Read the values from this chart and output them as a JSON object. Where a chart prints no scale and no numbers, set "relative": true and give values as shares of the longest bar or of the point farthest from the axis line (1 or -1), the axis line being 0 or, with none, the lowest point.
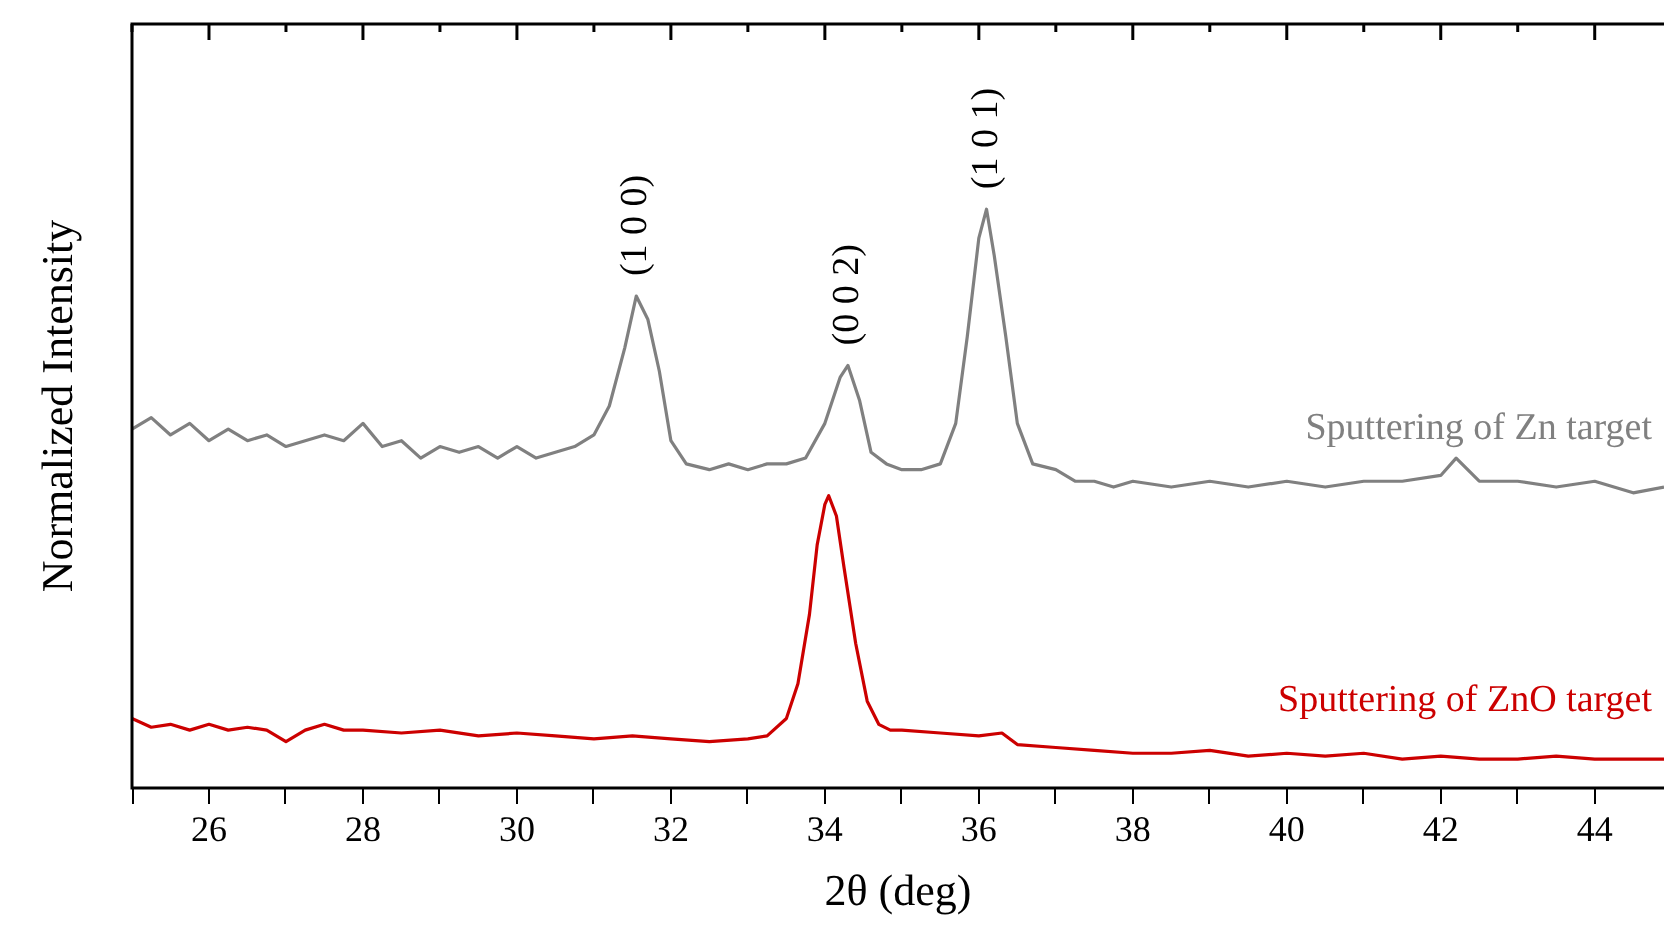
{
  "chart_data": {
    "type": "line",
    "relative": true,
    "xlabel": "2θ (deg)",
    "ylabel": "Normalized Intensity",
    "xlim": [
      25,
      44.9
    ],
    "xticks": [
      {
        "value": 25,
        "label": null
      },
      26,
      {
        "value": 27,
        "label": null
      },
      28,
      {
        "value": 29,
        "label": null
      },
      30,
      {
        "value": 31,
        "label": null
      },
      32,
      {
        "value": 33,
        "label": null
      },
      34,
      {
        "value": 35,
        "label": null
      },
      36,
      {
        "value": 37,
        "label": null
      },
      38,
      {
        "value": 39,
        "label": null
      },
      40,
      {
        "value": 41,
        "label": null
      },
      42,
      {
        "value": 43,
        "label": null
      },
      44
    ],
    "grid": false,
    "series": [
      {
        "name": "Sputtering of Zn target",
        "color": "#808080",
        "x": [
          25,
          25.25,
          25.5,
          25.75,
          26,
          26.25,
          26.5,
          26.75,
          27,
          27.25,
          27.5,
          27.75,
          28,
          28.25,
          28.5,
          28.75,
          29,
          29.25,
          29.5,
          29.75,
          30,
          30.25,
          30.5,
          30.75,
          31,
          31.2,
          31.4,
          31.55,
          31.7,
          31.85,
          32,
          32.2,
          32.5,
          32.75,
          33,
          33.25,
          33.5,
          33.75,
          34,
          34.2,
          34.3,
          34.45,
          34.6,
          34.8,
          35,
          35.25,
          35.5,
          35.7,
          35.85,
          36,
          36.1,
          36.2,
          36.35,
          36.5,
          36.7,
          37,
          37.25,
          37.5,
          37.75,
          38,
          38.5,
          39,
          39.5,
          40,
          40.5,
          41,
          41.5,
          42,
          42.2,
          42.5,
          43,
          43.5,
          44,
          44.5,
          44.9
        ],
        "values": [
          0.62,
          0.64,
          0.61,
          0.63,
          0.6,
          0.62,
          0.6,
          0.61,
          0.59,
          0.6,
          0.61,
          0.6,
          0.63,
          0.59,
          0.6,
          0.57,
          0.59,
          0.58,
          0.59,
          0.57,
          0.59,
          0.57,
          0.58,
          0.59,
          0.61,
          0.66,
          0.76,
          0.85,
          0.81,
          0.72,
          0.6,
          0.56,
          0.55,
          0.56,
          0.55,
          0.56,
          0.56,
          0.57,
          0.63,
          0.71,
          0.73,
          0.67,
          0.58,
          0.56,
          0.55,
          0.55,
          0.56,
          0.63,
          0.78,
          0.95,
          1,
          0.92,
          0.78,
          0.63,
          0.56,
          0.55,
          0.53,
          0.53,
          0.52,
          0.53,
          0.52,
          0.53,
          0.52,
          0.53,
          0.52,
          0.53,
          0.53,
          0.54,
          0.57,
          0.53,
          0.53,
          0.52,
          0.53,
          0.51,
          0.52
        ]
      },
      {
        "name": "Sputtering of ZnO target",
        "color": "#cc0000",
        "x": [
          25,
          25.25,
          25.5,
          25.75,
          26,
          26.25,
          26.5,
          26.75,
          27,
          27.25,
          27.5,
          27.75,
          28,
          28.5,
          29,
          29.5,
          30,
          30.5,
          31,
          31.5,
          32,
          32.5,
          33,
          33.25,
          33.5,
          33.65,
          33.8,
          33.9,
          34,
          34.05,
          34.15,
          34.25,
          34.4,
          34.55,
          34.7,
          34.85,
          35,
          35.5,
          36,
          36.3,
          36.5,
          37,
          37.5,
          38,
          38.5,
          39,
          39.5,
          40,
          40.5,
          41,
          41.5,
          42,
          42.5,
          43,
          43.5,
          44,
          44.5,
          44.9
        ],
        "values": [
          0.12,
          0.105,
          0.11,
          0.1,
          0.11,
          0.1,
          0.105,
          0.1,
          0.08,
          0.1,
          0.11,
          0.1,
          0.1,
          0.095,
          0.1,
          0.09,
          0.095,
          0.09,
          0.085,
          0.09,
          0.085,
          0.08,
          0.085,
          0.09,
          0.12,
          0.18,
          0.3,
          0.42,
          0.49,
          0.505,
          0.47,
          0.38,
          0.25,
          0.15,
          0.11,
          0.1,
          0.1,
          0.095,
          0.09,
          0.095,
          0.075,
          0.07,
          0.065,
          0.06,
          0.06,
          0.065,
          0.055,
          0.06,
          0.055,
          0.06,
          0.05,
          0.055,
          0.05,
          0.05,
          0.055,
          0.05,
          0.05,
          0.05
        ]
      }
    ],
    "annotations": [
      {
        "text": "(1 0 0)",
        "x": 31.55,
        "y": 0.85
      },
      {
        "text": "(0 0 2)",
        "x": 34.3,
        "y": 0.73
      },
      {
        "text": "(1 0 1)",
        "x": 36.1,
        "y": 1
      }
    ]
  }
}
